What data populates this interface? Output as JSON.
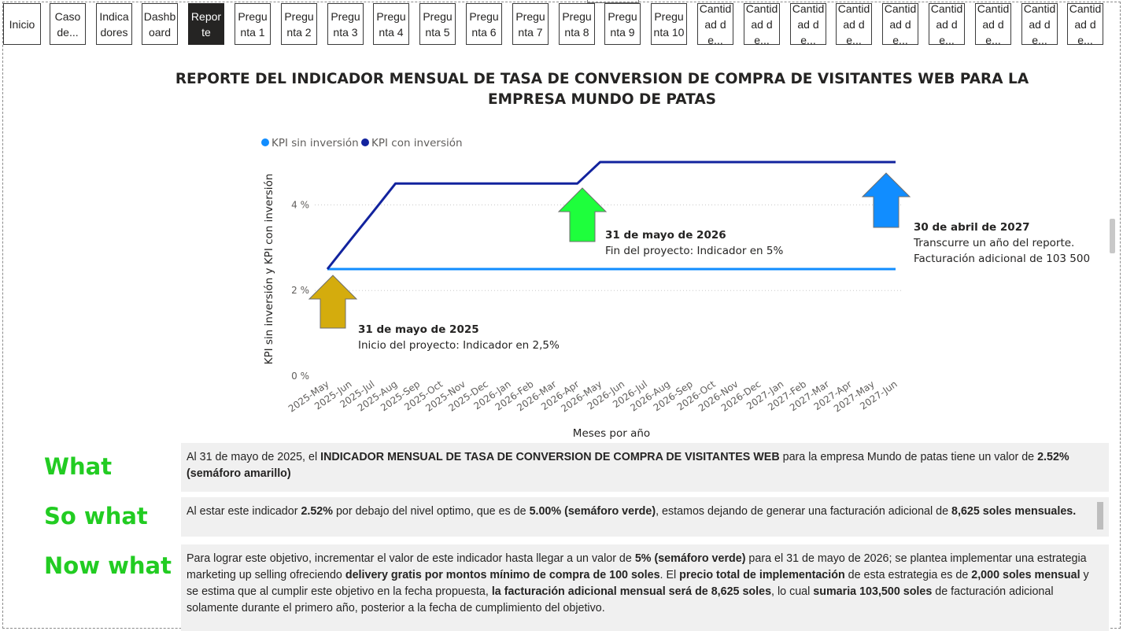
{
  "nav": {
    "buttons": [
      {
        "label": "Inicio"
      },
      {
        "label": "Caso de..."
      },
      {
        "label": "Indicadores"
      },
      {
        "label": "Dashboard"
      },
      {
        "label": "Reporte",
        "active": true
      },
      {
        "label": "Pregunta 1"
      },
      {
        "label": "Pregunta 2"
      },
      {
        "label": "Pregunta 3"
      },
      {
        "label": "Pregunta 4"
      },
      {
        "label": "Pregunta 5"
      },
      {
        "label": "Pregunta 6"
      },
      {
        "label": "Pregunta 7"
      },
      {
        "label": "Pregunta 8"
      },
      {
        "label": "Pregunta 9"
      },
      {
        "label": "Pregunta 10"
      },
      {
        "label": "Cantidad de..."
      },
      {
        "label": "Cantidad de..."
      },
      {
        "label": "Cantidad de..."
      },
      {
        "label": "Cantidad de..."
      },
      {
        "label": "Cantidad de..."
      },
      {
        "label": "Cantidad de..."
      },
      {
        "label": "Cantidad de..."
      },
      {
        "label": "Cantidad de..."
      },
      {
        "label": "Cantidad de..."
      }
    ]
  },
  "report": {
    "title": "REPORTE DEL INDICADOR MENSUAL DE TASA DE CONVERSION DE COMPRA DE VISITANTES WEB PARA LA EMPRESA MUNDO DE PATAS"
  },
  "chart_data": {
    "type": "line",
    "x": [
      "2025-May",
      "2025-Jun",
      "2025-Jul",
      "2025-Aug",
      "2025-Sep",
      "2025-Oct",
      "2025-Nov",
      "2025-Dec",
      "2026-Jan",
      "2026-Feb",
      "2026-Mar",
      "2026-Apr",
      "2026-May",
      "2026-Jun",
      "2026-Jul",
      "2026-Aug",
      "2026-Sep",
      "2026-Oct",
      "2026-Nov",
      "2026-Dec",
      "2027-Jan",
      "2027-Feb",
      "2027-Mar",
      "2027-Apr",
      "2027-May",
      "2027-Jun"
    ],
    "series": [
      {
        "name": "KPI sin inversión",
        "color": "#118DFF",
        "values": [
          2.5,
          2.5,
          2.5,
          2.5,
          2.5,
          2.5,
          2.5,
          2.5,
          2.5,
          2.5,
          2.5,
          2.5,
          2.5,
          2.5,
          2.5,
          2.5,
          2.5,
          2.5,
          2.5,
          2.5,
          2.5,
          2.5,
          2.5,
          2.5,
          2.5,
          2.5
        ]
      },
      {
        "name": "KPI con inversión",
        "color": "#12239E",
        "values": [
          2.5,
          3.17,
          3.83,
          4.5,
          4.5,
          4.5,
          4.5,
          4.5,
          4.5,
          4.5,
          4.5,
          4.5,
          5,
          5,
          5,
          5,
          5,
          5,
          5,
          5,
          5,
          5,
          5,
          5,
          5,
          5
        ]
      }
    ],
    "xlabel": "Meses por año",
    "ylabel": "KPI sin inversión y KPI con inversión",
    "ylim": [
      0,
      5
    ],
    "yticks": [
      0,
      2,
      4
    ],
    "ytick_labels": [
      "0 %",
      "2 %",
      "4 %"
    ],
    "grid": true,
    "legend": "top-left",
    "annotations": [
      {
        "title": "31 de mayo de 2025",
        "text": [
          "Inicio del proyecto: Indicador en 2,5%"
        ],
        "arrow_color": "#D4AC0D"
      },
      {
        "title": "31 de mayo de 2026",
        "text": [
          "Fin del proyecto: Indicador en 5%"
        ],
        "arrow_color": "#1EFF3C"
      },
      {
        "title": "30 de abril de 2027",
        "text": [
          "Transcurre un año del reporte.",
          "Facturación adicional de 103 500"
        ],
        "arrow_color": "#118DFF"
      }
    ]
  },
  "sections": {
    "what": {
      "label": "What",
      "html": "Al 31 de mayo de 2025, el <b>INDICADOR MENSUAL DE TASA DE CONVERSION DE COMPRA DE VISITANTES WEB</b> para la empresa Mundo de patas tiene un valor de <b>2.52% (semáforo amarillo)</b>"
    },
    "so_what": {
      "label": "So what",
      "html": "Al estar este indicador <b>2.52%</b> por debajo del nivel optimo, que es de <b>5.00% (semáforo verde)</b>, estamos dejando de generar una facturación adicional de <b>8,625 soles mensuales.</b>"
    },
    "now_what": {
      "label": "Now what",
      "html": "Para lograr este objetivo, incrementar el valor de este indicador hasta llegar a un valor de <b>5% (semáforo verde)</b> para el 31 de mayo de 2026; se plantea implementar una estrategia marketing up selling ofreciendo <b>delivery gratis por montos mínimo de compra de 100 soles</b>. El <b>precio total de implementación</b> de esta estrategia es de <b>2,000 soles mensual</b> y se estima que al cumplir este objetivo en la fecha propuesta, <b>la facturación adicional mensual será de 8,625 soles</b>, lo cual <b>sumaria 103,500 soles</b> de facturación adicional solamente durante el primero año, posterior a la fecha de cumplimiento del objetivo."
    }
  }
}
